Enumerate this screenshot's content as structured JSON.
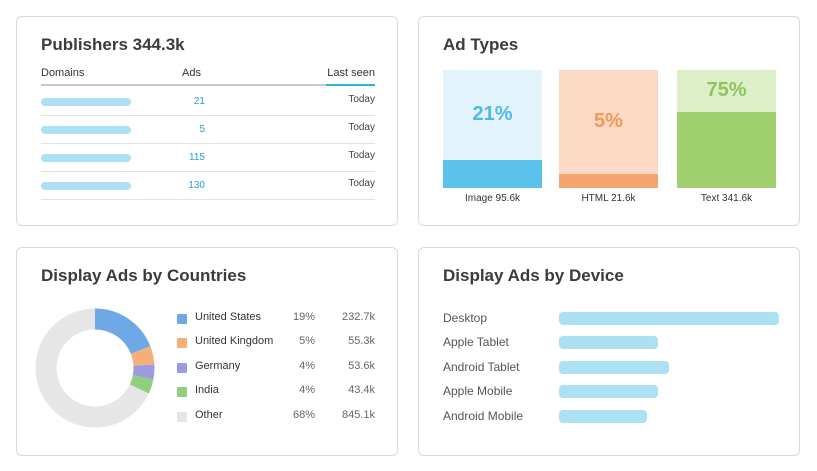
{
  "publishers": {
    "title": "Publishers 344.3k",
    "headers": {
      "domains": "Domains",
      "ads": "Ads",
      "last_seen": "Last seen"
    },
    "rows": [
      {
        "ads": "21",
        "last_seen": "Today"
      },
      {
        "ads": "5",
        "last_seen": "Today"
      },
      {
        "ads": "115",
        "last_seen": "Today"
      },
      {
        "ads": "130",
        "last_seen": "Today"
      }
    ]
  },
  "ad_types": {
    "title": "Ad Types",
    "items": [
      {
        "percent": "21%",
        "label": "Image 95.6k",
        "share": 0.21,
        "fill_color": "#5bc2eb",
        "bg_color": "#e3f3fb",
        "text_color": "#4fb8e4"
      },
      {
        "percent": "5%",
        "label": "HTML 21.6k",
        "share": 0.05,
        "fill_color": "#f5a56e",
        "bg_color": "#fbd9c4",
        "text_color": "#ee9a5c"
      },
      {
        "percent": "75%",
        "label": "Text 341.6k",
        "share": 0.75,
        "fill_color": "#a1d06e",
        "bg_color": "#ddefc9",
        "text_color": "#8cc55d"
      }
    ]
  },
  "countries": {
    "title": "Display Ads by Countries",
    "items": [
      {
        "name": "United States",
        "percent": "19%",
        "value": "232.7k",
        "share": 0.19,
        "color": "#6ea9e6"
      },
      {
        "name": "United Kingdom",
        "percent": "5%",
        "value": "55.3k",
        "share": 0.05,
        "color": "#f5b07a"
      },
      {
        "name": "Germany",
        "percent": "4%",
        "value": "53.6k",
        "share": 0.04,
        "color": "#9c9be2"
      },
      {
        "name": "India",
        "percent": "4%",
        "value": "43.4k",
        "share": 0.04,
        "color": "#8ed07e"
      },
      {
        "name": "Other",
        "percent": "68%",
        "value": "845.1k",
        "share": 0.68,
        "color": "#e6e6e6"
      }
    ]
  },
  "devices": {
    "title": "Display Ads by Device",
    "items": [
      {
        "name": "Desktop",
        "share": 1.0
      },
      {
        "name": "Apple Tablet",
        "share": 0.45
      },
      {
        "name": "Android Tablet",
        "share": 0.5
      },
      {
        "name": "Apple Mobile",
        "share": 0.45
      },
      {
        "name": "Android Mobile",
        "share": 0.4
      }
    ]
  },
  "colors": {
    "accent": "#2db1d8",
    "placeholder_bar": "#ace0f3"
  }
}
